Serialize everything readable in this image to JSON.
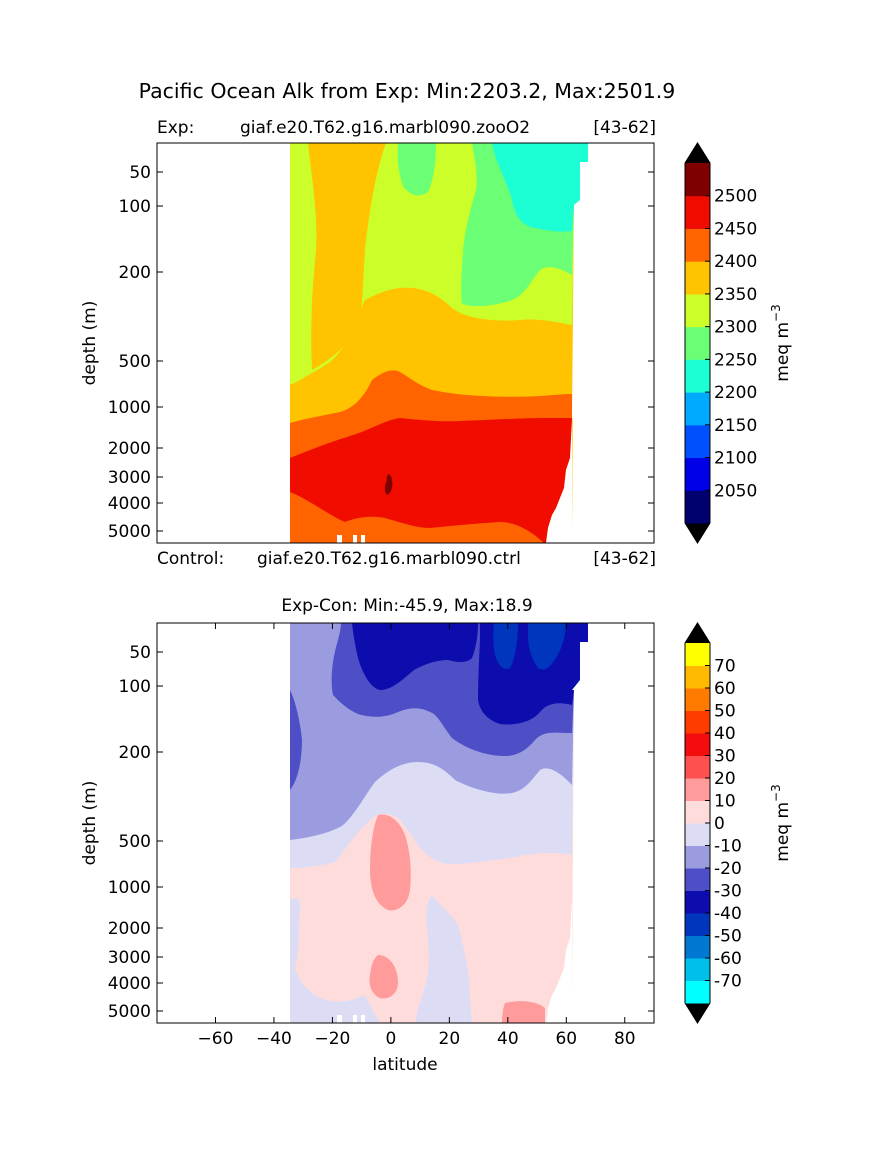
{
  "figure": {
    "suptitle": "Pacific Ocean Alk from Exp: Min:2203.2, Max:2501.9",
    "top_left_label": "Exp:",
    "top_case": "giaf.e20.T62.g16.marbl090.zooO2",
    "top_range": "[43-62]",
    "control_label": "Control:",
    "control_case": "giaf.e20.T62.g16.marbl090.ctrl",
    "control_range": "[43-62]",
    "bottom_title": "Exp-Con: Min:-45.9, Max:18.9",
    "xlabel": "latitude",
    "ylabel": "depth (m)"
  },
  "chart_data": [
    {
      "type": "contourf",
      "name": "Exp Alk section",
      "xlim": [
        -80,
        90
      ],
      "ylim": [
        5400,
        25
      ],
      "yscale": "log-like (depth)",
      "yticks": [
        50,
        100,
        200,
        500,
        1000,
        2000,
        3000,
        4000,
        5000
      ],
      "ytick_labels": [
        "50",
        "100",
        "200",
        "500",
        "1000",
        "2000",
        "3000",
        "4000",
        "5000"
      ],
      "colorbar": {
        "label": "meq m",
        "label_exp": "−3",
        "levels": [
          2000,
          2050,
          2100,
          2150,
          2200,
          2250,
          2300,
          2350,
          2400,
          2450,
          2500,
          2550
        ],
        "tick_values": [
          2050,
          2100,
          2150,
          2200,
          2250,
          2300,
          2350,
          2400,
          2450,
          2500
        ],
        "tick_labels": [
          "2050",
          "2100",
          "2150",
          "2200",
          "2250",
          "2300",
          "2350",
          "2400",
          "2450",
          "2500"
        ],
        "colors": [
          "#00006e",
          "#0000e6",
          "#0050ff",
          "#00aaff",
          "#1cffd4",
          "#6aff74",
          "#ccff2a",
          "#ffc300",
          "#ff6400",
          "#f00d00",
          "#7e0000"
        ],
        "under_color": "#000000",
        "over_color": "#000000"
      }
    },
    {
      "type": "contourf",
      "name": "Exp-Con Alk difference",
      "xlim": [
        -80,
        90
      ],
      "ylim": [
        5400,
        25
      ],
      "xticks": [
        -60,
        -40,
        -20,
        0,
        20,
        40,
        60,
        80
      ],
      "xtick_labels": [
        "−60",
        "−40",
        "−20",
        "0",
        "20",
        "40",
        "60",
        "80"
      ],
      "yticks": [
        50,
        100,
        200,
        500,
        1000,
        2000,
        3000,
        4000,
        5000
      ],
      "ytick_labels": [
        "50",
        "100",
        "200",
        "500",
        "1000",
        "2000",
        "3000",
        "4000",
        "5000"
      ],
      "colorbar": {
        "label": "meq m",
        "label_exp": "−3",
        "levels": [
          -80,
          -70,
          -60,
          -50,
          -40,
          -30,
          -20,
          -10,
          0,
          10,
          20,
          30,
          40,
          50,
          60,
          70,
          80
        ],
        "tick_values": [
          -70,
          -60,
          -50,
          -40,
          -30,
          -20,
          -10,
          0,
          10,
          20,
          30,
          40,
          50,
          60,
          70
        ],
        "tick_labels": [
          "-70",
          "-60",
          "-50",
          "-40",
          "-30",
          "-20",
          "-10",
          "0",
          "10",
          "20",
          "30",
          "40",
          "50",
          "60",
          "70"
        ],
        "colors": [
          "#00ffff",
          "#00bfe8",
          "#0078d2",
          "#0036be",
          "#0d0dad",
          "#4e4ec6",
          "#9b9be0",
          "#dcdcf5",
          "#ffdcdc",
          "#ff9b9b",
          "#ff5050",
          "#f40d0d",
          "#ff3c00",
          "#ff7b00",
          "#ffb900",
          "#ffff00"
        ],
        "under_color": "#000000",
        "over_color": "#000000"
      }
    }
  ]
}
